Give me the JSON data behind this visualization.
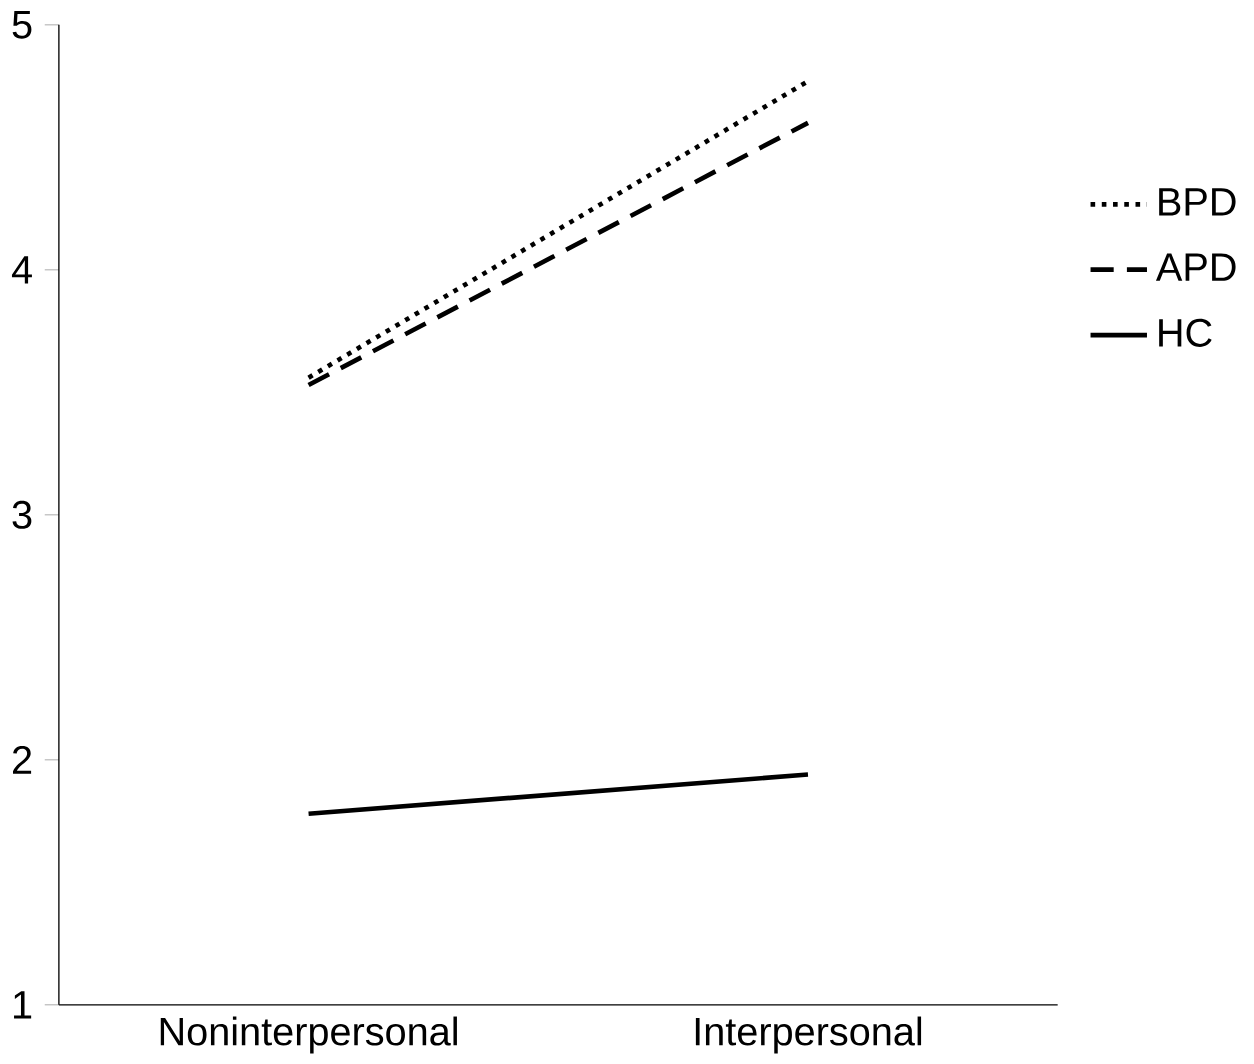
{
  "chart_data": {
    "type": "line",
    "categories": [
      "Noninterpersonal",
      "Interpersonal"
    ],
    "series": [
      {
        "name": "BPD",
        "color": "#000000",
        "line_style": "dotted",
        "values": [
          3.56,
          4.77
        ]
      },
      {
        "name": "APD",
        "color": "#000000",
        "line_style": "dashed",
        "values": [
          3.53,
          4.6
        ]
      },
      {
        "name": "HC",
        "color": "#000000",
        "line_style": "solid",
        "values": [
          1.78,
          1.94
        ]
      }
    ],
    "ylim": [
      1,
      5
    ],
    "yticks": [
      1,
      2,
      3,
      4,
      5
    ],
    "legend": "right",
    "marker": "none"
  }
}
